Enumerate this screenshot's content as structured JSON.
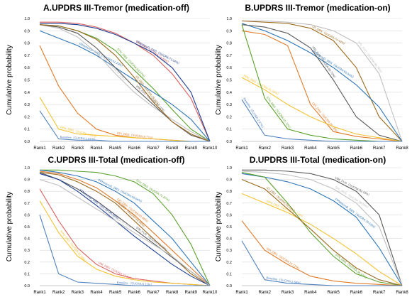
{
  "figure": {
    "ylabel": "Cumulative probability"
  },
  "chart_data": [
    {
      "type": "line",
      "title": "A.UPDRS III-Tremor (medication-off)",
      "ylabel": "Cumulative probability",
      "ylim": [
        0,
        1
      ],
      "yticks": [
        "0.0",
        "0.1",
        "0.2",
        "0.3",
        "0.4",
        "0.5",
        "0.6",
        "0.7",
        "0.8",
        "0.9",
        "1.0"
      ],
      "categories": [
        "Rank1",
        "Rank2",
        "Rank3",
        "Rank4",
        "Rank5",
        "Rank6",
        "Rank7",
        "Rank8",
        "Rank9",
        "Rank10"
      ],
      "grid": true,
      "series": [
        {
          "name": "VIM_DBS",
          "label": "VIM_DBS（SUCRA:74.49%）",
          "color": "#d95f5f",
          "values": [
            0.97,
            0.97,
            0.96,
            0.93,
            0.88,
            0.8,
            0.7,
            0.55,
            0.35,
            0.0
          ]
        },
        {
          "name": "STNmicroD_DBS",
          "label": "STNmicroD_DBS（SUCRA:71.04%）",
          "color": "#1f3f8f",
          "values": [
            0.96,
            0.96,
            0.95,
            0.92,
            0.87,
            0.8,
            0.72,
            0.6,
            0.4,
            0.0
          ]
        },
        {
          "name": "STN_DBS",
          "label": "STN_DBS（SUCRA:63.07%）",
          "color": "#5aa02c",
          "values": [
            0.95,
            0.94,
            0.9,
            0.84,
            0.74,
            0.58,
            0.43,
            0.26,
            0.1,
            0.0
          ]
        },
        {
          "name": "PPNmicroD_DBS",
          "label": "PPNmicroD_DBS（SUCRA:61.29%）",
          "color": "#2e75b6",
          "values": [
            0.9,
            0.84,
            0.78,
            0.7,
            0.6,
            0.5,
            0.4,
            0.3,
            0.18,
            0.0
          ]
        },
        {
          "name": "SPL_FUS",
          "label": "SPL_FUS（SUCRA:47.13%）",
          "color": "#bfbfbf",
          "values": [
            0.95,
            0.92,
            0.85,
            0.72,
            0.55,
            0.4,
            0.28,
            0.18,
            0.08,
            0.0
          ]
        },
        {
          "name": "VIM_FUS",
          "label": "VIM_FUS（SUCRA:37.11%）",
          "color": "#595959",
          "values": [
            0.95,
            0.93,
            0.88,
            0.76,
            0.6,
            0.44,
            0.3,
            0.16,
            0.05,
            0.0
          ]
        },
        {
          "name": "rZI_DBS",
          "label": "rZI_DBS（SUCRA:29.39%）",
          "color": "#9c6b1f",
          "values": [
            0.95,
            0.94,
            0.9,
            0.83,
            0.7,
            0.52,
            0.32,
            0.16,
            0.06,
            0.0
          ]
        },
        {
          "name": "GPi_DBS",
          "label": "GPi_DBS（SUCRA:9.71%）",
          "color": "#e07b2a",
          "values": [
            0.78,
            0.45,
            0.23,
            0.1,
            0.05,
            0.03,
            0.02,
            0.01,
            0.0,
            0.0
          ]
        },
        {
          "name": "PPN_DBS",
          "label": "PPN_DBS（SUCRA:4.16%）",
          "color": "#f2c232",
          "values": [
            0.36,
            0.1,
            0.06,
            0.05,
            0.04,
            0.03,
            0.02,
            0.01,
            0.0,
            0.0
          ]
        },
        {
          "name": "Baseline",
          "label": "Baseline（SUCRA:1.61%）",
          "color": "#4f81bd",
          "values": [
            0.25,
            0.02,
            0.01,
            0.01,
            0.0,
            0.0,
            0.0,
            0.0,
            0.0,
            0.0
          ]
        }
      ]
    },
    {
      "type": "line",
      "title": "B.UPDRS III-Tremor (medication-on)",
      "ylabel": "Cumulative probability",
      "ylim": [
        0,
        1
      ],
      "yticks": [
        "0.0",
        "0.1",
        "0.2",
        "0.3",
        "0.4",
        "0.5",
        "0.6",
        "0.7",
        "0.8",
        "0.9",
        "1.0"
      ],
      "categories": [
        "Rank1",
        "Rank2",
        "Rank3",
        "Rank4",
        "Rank5",
        "Rank6",
        "Rank7",
        "Rank8"
      ],
      "grid": true,
      "series": [
        {
          "name": "SPL_FUS",
          "label": "SPL_FUS（SUCRA:86.76%）",
          "color": "#bfbfbf",
          "values": [
            0.98,
            0.98,
            0.97,
            0.95,
            0.9,
            0.8,
            0.55,
            0.0
          ]
        },
        {
          "name": "rZI_DBS",
          "label": "rZI_DBS（SUCRA:74.43%）",
          "color": "#9c6b1f",
          "values": [
            0.98,
            0.97,
            0.96,
            0.92,
            0.82,
            0.6,
            0.2,
            0.0
          ]
        },
        {
          "name": "PPNmicroD_DBS",
          "label": "PPNmicroD_DBS（SUCRA:65.93%）",
          "color": "#2e75b6",
          "values": [
            0.96,
            0.9,
            0.82,
            0.72,
            0.6,
            0.46,
            0.28,
            0.0
          ]
        },
        {
          "name": "VIM_FUS",
          "label": "VIM_FUS（SUCRA:48.73%）",
          "color": "#595959",
          "values": [
            0.95,
            0.93,
            0.88,
            0.76,
            0.5,
            0.2,
            0.05,
            0.0
          ]
        },
        {
          "name": "GPi_DBS",
          "label": "GPi_DBS（SUCRA:29.78%）",
          "color": "#e07b2a",
          "values": [
            0.9,
            0.87,
            0.78,
            0.3,
            0.08,
            0.04,
            0.02,
            0.0
          ]
        },
        {
          "name": "PPN_DBS",
          "label": "PPN_DBS（SUCRA:31.76%）",
          "color": "#f2c232",
          "values": [
            0.52,
            0.42,
            0.3,
            0.2,
            0.12,
            0.06,
            0.03,
            0.0
          ]
        },
        {
          "name": "STN_DBS",
          "label": "STN_DBS（SUCRA:15.72%）",
          "color": "#5aa02c",
          "values": [
            0.95,
            0.35,
            0.1,
            0.05,
            0.02,
            0.01,
            0.0,
            0.0
          ]
        },
        {
          "name": "Baseline",
          "label": "Baseline（SUCRA:2.97%）",
          "color": "#4f81bd",
          "values": [
            0.34,
            0.05,
            0.02,
            0.01,
            0.0,
            0.0,
            0.0,
            0.0
          ]
        }
      ]
    },
    {
      "type": "line",
      "title": "C.UPDRS III-Total (medication-off)",
      "ylabel": "Cumulative probability",
      "ylim": [
        0,
        1
      ],
      "yticks": [
        "0.0",
        "0.1",
        "0.2",
        "0.3",
        "0.4",
        "0.5",
        "0.6",
        "0.7",
        "0.8",
        "0.9",
        "1.0"
      ],
      "categories": [
        "Rank1",
        "Rank2",
        "Rank3",
        "Rank4",
        "Rank5",
        "Rank6",
        "Rank7",
        "Rank8",
        "Rank9",
        "Rank10"
      ],
      "grid": true,
      "series": [
        {
          "name": "STN_DBS",
          "label": "STN_DBS（SUCRA:71.87%）",
          "color": "#5aa02c",
          "values": [
            0.98,
            0.98,
            0.97,
            0.96,
            0.93,
            0.88,
            0.78,
            0.6,
            0.35,
            0.0
          ]
        },
        {
          "name": "PPNmicroD_DBS",
          "label": "PPNmicroD_DBS（SUCRA:55.64%）",
          "color": "#2e75b6",
          "values": [
            0.98,
            0.96,
            0.93,
            0.88,
            0.8,
            0.7,
            0.55,
            0.4,
            0.2,
            0.0
          ]
        },
        {
          "name": "GPi_DBS",
          "label": "GPi_DBS（SUCRA:62.48%）",
          "color": "#e07b2a",
          "values": [
            0.97,
            0.95,
            0.9,
            0.83,
            0.72,
            0.6,
            0.45,
            0.3,
            0.15,
            0.0
          ]
        },
        {
          "name": "rZI_DBS",
          "label": "rZI_DBS（SUCRA:63.94%）",
          "color": "#9c6b1f",
          "values": [
            0.96,
            0.94,
            0.88,
            0.8,
            0.7,
            0.55,
            0.4,
            0.25,
            0.1,
            0.0
          ]
        },
        {
          "name": "VIM_FUS",
          "label": "VIM_FUS（SUCRA:53.23%）",
          "color": "#595959",
          "values": [
            0.96,
            0.9,
            0.82,
            0.72,
            0.6,
            0.48,
            0.36,
            0.24,
            0.12,
            0.0
          ]
        },
        {
          "name": "STNmicroD_DBS",
          "label": "STNmicroD_DBS（SUCRA:46.39%）",
          "color": "#1f3f8f",
          "values": [
            0.95,
            0.9,
            0.8,
            0.68,
            0.55,
            0.42,
            0.3,
            0.18,
            0.08,
            0.0
          ]
        },
        {
          "name": "SPL_FUS",
          "label": "SPL_FUS（SUCRA:50.93%）",
          "color": "#bfbfbf",
          "values": [
            0.9,
            0.85,
            0.75,
            0.65,
            0.55,
            0.45,
            0.35,
            0.25,
            0.12,
            0.0
          ]
        },
        {
          "name": "VIM_DBS",
          "label": "VIM_DBS（SUCRA:21.84%）",
          "color": "#d95f5f",
          "values": [
            0.82,
            0.55,
            0.32,
            0.18,
            0.1,
            0.06,
            0.04,
            0.02,
            0.01,
            0.0
          ]
        },
        {
          "name": "PPN_DBS",
          "label": "PPN_DBS（SUCRA:22.58%）",
          "color": "#f2c232",
          "values": [
            0.72,
            0.45,
            0.25,
            0.14,
            0.08,
            0.05,
            0.03,
            0.02,
            0.01,
            0.0
          ]
        },
        {
          "name": "Baseline",
          "label": "Baseline（SUCRA:6.11%）",
          "color": "#4f81bd",
          "values": [
            0.6,
            0.1,
            0.03,
            0.02,
            0.01,
            0.0,
            0.0,
            0.0,
            0.0,
            0.0
          ]
        }
      ]
    },
    {
      "type": "line",
      "title": "D.UPDRS III-Total (medication-on)",
      "ylabel": "Cumulative probability",
      "ylim": [
        0,
        1
      ],
      "yticks": [
        "0.0",
        "0.1",
        "0.2",
        "0.3",
        "0.4",
        "0.5",
        "0.6",
        "0.7",
        "0.8",
        "0.9",
        "1.0"
      ],
      "categories": [
        "Rank1",
        "Rank2",
        "Rank3",
        "Rank4",
        "Rank5",
        "Rank6",
        "Rank7",
        "Rank8"
      ],
      "grid": true,
      "series": [
        {
          "name": "VIM_FUS",
          "label": "VIM_FUS（SUCRA:82.19%）",
          "color": "#595959",
          "values": [
            0.98,
            0.98,
            0.97,
            0.95,
            0.9,
            0.8,
            0.6,
            0.0
          ]
        },
        {
          "name": "SPL_FUS",
          "label": "SPL_FUS（SUCRA:78.33%）",
          "color": "#bfbfbf",
          "values": [
            0.97,
            0.96,
            0.94,
            0.9,
            0.82,
            0.7,
            0.5,
            0.0
          ]
        },
        {
          "name": "PPNmicroD_DBS",
          "label": "PPNmicroD_DBS（SUCRA:70.53%）",
          "color": "#2e75b6",
          "values": [
            0.95,
            0.92,
            0.88,
            0.82,
            0.72,
            0.58,
            0.32,
            0.0
          ]
        },
        {
          "name": "PPN_DBS",
          "label": "PPN_DBS（SUCRA:47.13%）",
          "color": "#f2c232",
          "values": [
            0.78,
            0.7,
            0.62,
            0.52,
            0.4,
            0.27,
            0.12,
            0.0
          ]
        },
        {
          "name": "STN_DBS",
          "label": "STN_DBS（SUCRA:36.47%）",
          "color": "#5aa02c",
          "values": [
            0.96,
            0.92,
            0.7,
            0.45,
            0.25,
            0.1,
            0.03,
            0.0
          ]
        },
        {
          "name": "rZI_DBS",
          "label": "rZI_DBS（SUCRA:36.33%）",
          "color": "#9c6b1f",
          "values": [
            0.9,
            0.82,
            0.65,
            0.48,
            0.3,
            0.15,
            0.05,
            0.0
          ]
        },
        {
          "name": "GPi_DBS",
          "label": "GPi_DBS（SUCRA:14.71%）",
          "color": "#e07b2a",
          "values": [
            0.55,
            0.3,
            0.18,
            0.08,
            0.04,
            0.02,
            0.01,
            0.0
          ]
        },
        {
          "name": "Baseline",
          "label": "Baseline（SUCRA:2.66%）",
          "color": "#4f81bd",
          "values": [
            0.38,
            0.05,
            0.02,
            0.01,
            0.0,
            0.0,
            0.0,
            0.0
          ]
        }
      ]
    }
  ]
}
